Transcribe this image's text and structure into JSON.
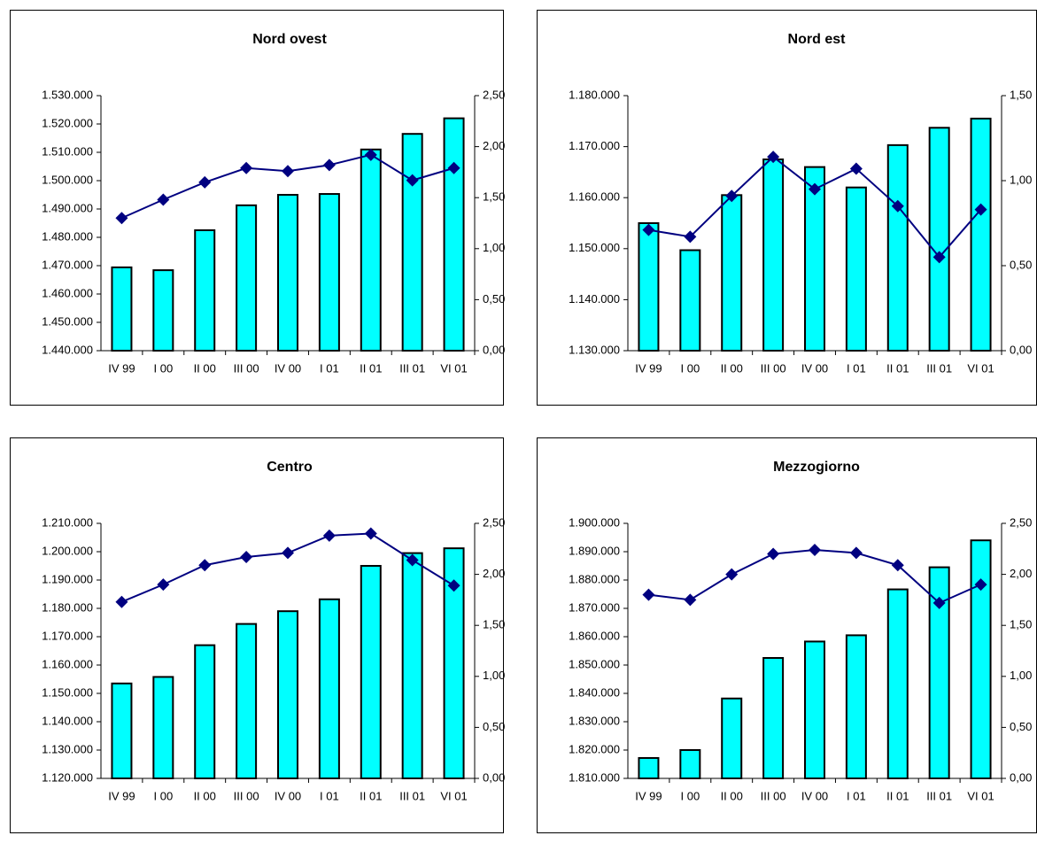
{
  "chart_data": [
    {
      "type": "bar",
      "title": "Nord ovest",
      "categories": [
        "IV 99",
        "I 00",
        "II 00",
        "III 00",
        "IV 00",
        "I 01",
        "II 01",
        "III 01",
        "VI 01"
      ],
      "series": [
        {
          "type": "bar",
          "color": "#00ffff",
          "values": [
            1469400,
            1468400,
            1482500,
            1491300,
            1495000,
            1495300,
            1511000,
            1516500,
            1522000
          ]
        },
        {
          "type": "line",
          "axis": "y2",
          "color": "#000080",
          "values": [
            1.3,
            1.48,
            1.65,
            1.79,
            1.76,
            1.82,
            1.92,
            1.67,
            1.79
          ]
        }
      ],
      "ylim": [
        1440000,
        1530000
      ],
      "yticks": [
        {
          "value": 1440000,
          "label": "1.440.000"
        },
        {
          "value": 1450000,
          "label": "1.450.000"
        },
        {
          "value": 1460000,
          "label": "1.460.000"
        },
        {
          "value": 1470000,
          "label": "1.470.000"
        },
        {
          "value": 1480000,
          "label": "1.480.000"
        },
        {
          "value": 1490000,
          "label": "1.490.000"
        },
        {
          "value": 1500000,
          "label": "1.500.000"
        },
        {
          "value": 1510000,
          "label": "1.510.000"
        },
        {
          "value": 1520000,
          "label": "1.520.000"
        },
        {
          "value": 1530000,
          "label": "1.530.000"
        }
      ],
      "y2lim": [
        0,
        2.5
      ],
      "y2ticks": [
        {
          "value": 0,
          "label": "0,00"
        },
        {
          "value": 0.5,
          "label": "0,50"
        },
        {
          "value": 1,
          "label": "1,00"
        },
        {
          "value": 1.5,
          "label": "1,50"
        },
        {
          "value": 2,
          "label": "2,00"
        },
        {
          "value": 2.5,
          "label": "2,50"
        }
      ]
    },
    {
      "type": "bar",
      "title": "Nord est",
      "categories": [
        "IV 99",
        "I 00",
        "II 00",
        "III 00",
        "IV 00",
        "I 01",
        "II 01",
        "III 01",
        "VI 01"
      ],
      "series": [
        {
          "type": "bar",
          "color": "#00ffff",
          "values": [
            1155000,
            1149700,
            1160500,
            1167500,
            1166000,
            1162000,
            1170300,
            1173700,
            1175500
          ]
        },
        {
          "type": "line",
          "axis": "y2",
          "color": "#000080",
          "values": [
            0.71,
            0.67,
            0.91,
            1.14,
            0.95,
            1.07,
            0.85,
            0.55,
            0.83
          ]
        }
      ],
      "ylim": [
        1130000,
        1180000
      ],
      "yticks": [
        {
          "value": 1130000,
          "label": "1.130.000"
        },
        {
          "value": 1140000,
          "label": "1.140.000"
        },
        {
          "value": 1150000,
          "label": "1.150.000"
        },
        {
          "value": 1160000,
          "label": "1.160.000"
        },
        {
          "value": 1170000,
          "label": "1.170.000"
        },
        {
          "value": 1180000,
          "label": "1.180.000"
        }
      ],
      "y2lim": [
        0,
        1.5
      ],
      "y2ticks": [
        {
          "value": 0,
          "label": "0,00"
        },
        {
          "value": 0.5,
          "label": "0,50"
        },
        {
          "value": 1,
          "label": "1,00"
        },
        {
          "value": 1.5,
          "label": "1,50"
        }
      ]
    },
    {
      "type": "bar",
      "title": "Centro",
      "categories": [
        "IV 99",
        "I 00",
        "II 00",
        "III 00",
        "IV 00",
        "I 01",
        "II 01",
        "III 01",
        "VI 01"
      ],
      "series": [
        {
          "type": "bar",
          "color": "#00ffff",
          "values": [
            1153500,
            1155800,
            1167000,
            1174500,
            1179000,
            1183200,
            1195000,
            1199500,
            1201200
          ]
        },
        {
          "type": "line",
          "axis": "y2",
          "color": "#000080",
          "values": [
            1.73,
            1.9,
            2.09,
            2.17,
            2.21,
            2.38,
            2.4,
            2.14,
            1.89
          ]
        }
      ],
      "ylim": [
        1120000,
        1210000
      ],
      "yticks": [
        {
          "value": 1120000,
          "label": "1.120.000"
        },
        {
          "value": 1130000,
          "label": "1.130.000"
        },
        {
          "value": 1140000,
          "label": "1.140.000"
        },
        {
          "value": 1150000,
          "label": "1.150.000"
        },
        {
          "value": 1160000,
          "label": "1.160.000"
        },
        {
          "value": 1170000,
          "label": "1.170.000"
        },
        {
          "value": 1180000,
          "label": "1.180.000"
        },
        {
          "value": 1190000,
          "label": "1.190.000"
        },
        {
          "value": 1200000,
          "label": "1.200.000"
        },
        {
          "value": 1210000,
          "label": "1.210.000"
        }
      ],
      "y2lim": [
        0,
        2.5
      ],
      "y2ticks": [
        {
          "value": 0,
          "label": "0,00"
        },
        {
          "value": 0.5,
          "label": "0,50"
        },
        {
          "value": 1,
          "label": "1,00"
        },
        {
          "value": 1.5,
          "label": "1,50"
        },
        {
          "value": 2,
          "label": "2,00"
        },
        {
          "value": 2.5,
          "label": "2,50"
        }
      ]
    },
    {
      "type": "bar",
      "title": "Mezzogiorno",
      "categories": [
        "IV 99",
        "I 00",
        "II 00",
        "III 00",
        "IV 00",
        "I 01",
        "II 01",
        "III 01",
        "VI 01"
      ],
      "series": [
        {
          "type": "bar",
          "color": "#00ffff",
          "values": [
            1817200,
            1820000,
            1838200,
            1852500,
            1858300,
            1860500,
            1876700,
            1884500,
            1894000
          ]
        },
        {
          "type": "line",
          "axis": "y2",
          "color": "#000080",
          "values": [
            1.8,
            1.75,
            2.0,
            2.2,
            2.24,
            2.21,
            2.09,
            1.72,
            1.9
          ]
        }
      ],
      "ylim": [
        1810000,
        1900000
      ],
      "yticks": [
        {
          "value": 1810000,
          "label": "1.810.000"
        },
        {
          "value": 1820000,
          "label": "1.820.000"
        },
        {
          "value": 1830000,
          "label": "1.830.000"
        },
        {
          "value": 1840000,
          "label": "1.840.000"
        },
        {
          "value": 1850000,
          "label": "1.850.000"
        },
        {
          "value": 1860000,
          "label": "1.860.000"
        },
        {
          "value": 1870000,
          "label": "1.870.000"
        },
        {
          "value": 1880000,
          "label": "1.880.000"
        },
        {
          "value": 1890000,
          "label": "1.890.000"
        },
        {
          "value": 1900000,
          "label": "1.900.000"
        }
      ],
      "y2lim": [
        0,
        2.5
      ],
      "y2ticks": [
        {
          "value": 0,
          "label": "0,00"
        },
        {
          "value": 0.5,
          "label": "0,50"
        },
        {
          "value": 1,
          "label": "1,00"
        },
        {
          "value": 1.5,
          "label": "1,50"
        },
        {
          "value": 2,
          "label": "2,00"
        },
        {
          "value": 2.5,
          "label": "2,50"
        }
      ]
    }
  ]
}
